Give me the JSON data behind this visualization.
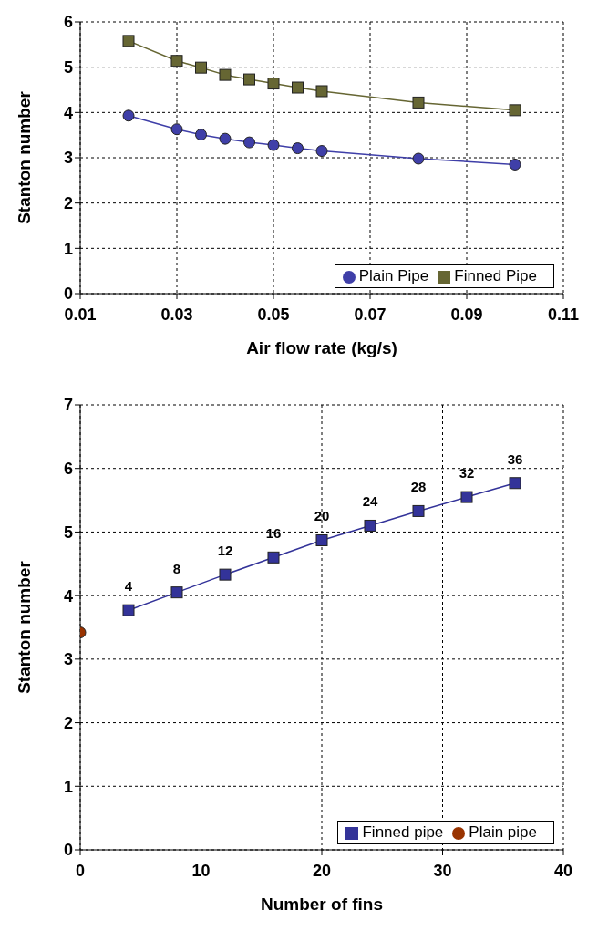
{
  "chart_data": [
    {
      "type": "line",
      "xlabel": "Air flow rate (kg/s)",
      "ylabel": "Stanton number",
      "xlim": [
        0.01,
        0.11
      ],
      "xticks": [
        0.01,
        0.03,
        0.05,
        0.07,
        0.09,
        0.11
      ],
      "ylim": [
        0,
        6
      ],
      "yticks": [
        0,
        1,
        2,
        3,
        4,
        5,
        6
      ],
      "grid": true,
      "legend": "bottom right",
      "line_style": "solid",
      "x": [
        0.02,
        0.03,
        0.035,
        0.04,
        0.045,
        0.05,
        0.055,
        0.06,
        0.08,
        0.1
      ],
      "series": [
        {
          "name": "Plain Pipe",
          "color": "#3f3fa8",
          "marker": "circle",
          "values": [
            3.93,
            3.63,
            3.51,
            3.42,
            3.34,
            3.28,
            3.21,
            3.15,
            2.98,
            2.85
          ]
        },
        {
          "name": "Finned Pipe",
          "color": "#666633",
          "marker": "square",
          "values": [
            5.58,
            5.14,
            4.99,
            4.83,
            4.73,
            4.64,
            4.55,
            4.47,
            4.22,
            4.05
          ]
        }
      ]
    },
    {
      "type": "line",
      "xlabel": "Number of fins",
      "annotations": [
        {
          "text": "4",
          "x": 4,
          "y": 3.77
        },
        {
          "text": "8",
          "x": 8,
          "y": 4.05
        },
        {
          "text": "12",
          "x": 12,
          "y": 4.33
        },
        {
          "text": "16",
          "x": 16,
          "y": 4.6
        },
        {
          "text": "20",
          "x": 20,
          "y": 4.87
        },
        {
          "text": "24",
          "x": 24,
          "y": 5.1
        },
        {
          "text": "28",
          "x": 28,
          "y": 5.33
        },
        {
          "text": "32",
          "x": 32,
          "y": 5.55
        },
        {
          "text": "36",
          "x": 36,
          "y": 5.77
        }
      ],
      "ylabel": "Stanton number",
      "xlim": [
        0,
        40
      ],
      "xticks": [
        0,
        10,
        20,
        30,
        40
      ],
      "ylim": [
        0,
        7
      ],
      "yticks": [
        0,
        1,
        2,
        3,
        4,
        5,
        6,
        7
      ],
      "grid": true,
      "legend": "bottom right",
      "line_style": "solid",
      "series": [
        {
          "name": "Finned pipe",
          "color": "#333399",
          "marker": "square",
          "x": [
            4,
            8,
            12,
            16,
            20,
            24,
            28,
            32,
            36
          ],
          "values": [
            3.77,
            4.05,
            4.33,
            4.6,
            4.87,
            5.1,
            5.33,
            5.55,
            5.77
          ]
        },
        {
          "name": "Plain pipe",
          "color": "#993300",
          "marker": "circle",
          "x": [
            0
          ],
          "values": [
            3.42
          ]
        }
      ]
    }
  ]
}
